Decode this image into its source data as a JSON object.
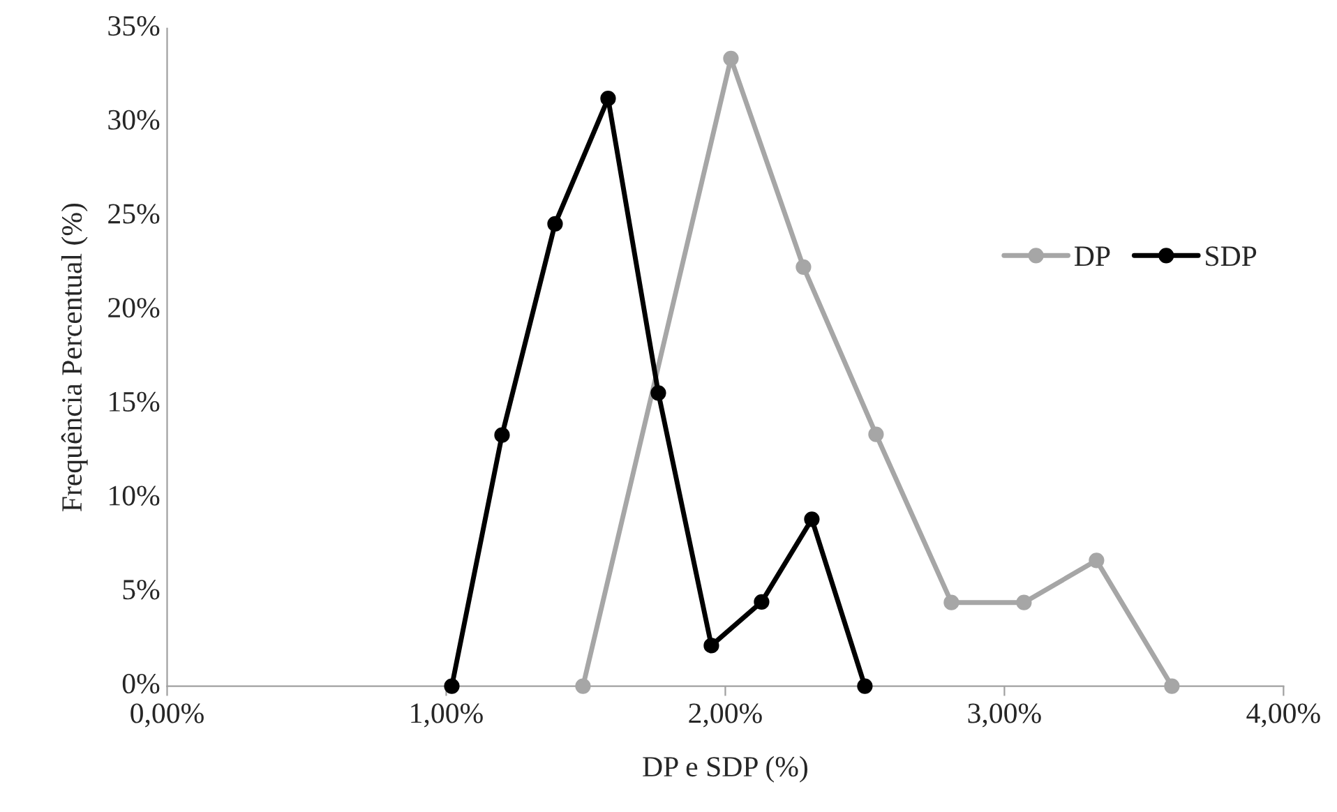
{
  "chart_data": {
    "type": "line",
    "xlabel": "DP e SDP (%)",
    "ylabel": "Frequência Percentual (%)",
    "series": [
      {
        "name": "DP",
        "color": "#a6a6a6",
        "x": [
          1.49,
          2.02,
          2.28,
          2.54,
          2.81,
          3.07,
          3.33,
          3.6
        ],
        "values": [
          0,
          33.4,
          22.3,
          13.4,
          4.45,
          4.45,
          6.69,
          0
        ]
      },
      {
        "name": "SDP",
        "color": "#000000",
        "x": [
          1.02,
          1.2,
          1.39,
          1.58,
          1.76,
          1.95,
          2.13,
          2.31,
          2.5
        ],
        "values": [
          0,
          13.36,
          24.6,
          31.27,
          15.6,
          2.16,
          4.48,
          8.88,
          0
        ]
      }
    ],
    "xlim": [
      0,
      4
    ],
    "xticks": [
      {
        "value": 0,
        "label": "0,00%"
      },
      {
        "value": 1,
        "label": "1,00%"
      },
      {
        "value": 2,
        "label": "2,00%"
      },
      {
        "value": 3,
        "label": "3,00%"
      },
      {
        "value": 4,
        "label": "4,00%"
      }
    ],
    "ylim": [
      0,
      35
    ],
    "yticks": [
      {
        "value": 0,
        "label": "0%"
      },
      {
        "value": 5,
        "label": "5%"
      },
      {
        "value": 10,
        "label": "10%"
      },
      {
        "value": 15,
        "label": "15%"
      },
      {
        "value": 20,
        "label": "20%"
      },
      {
        "value": 25,
        "label": "25%"
      },
      {
        "value": 30,
        "label": "30%"
      },
      {
        "value": 35,
        "label": "35%"
      }
    ],
    "grid": false,
    "legend": "right",
    "marker": "circle",
    "line_style": "solid"
  }
}
